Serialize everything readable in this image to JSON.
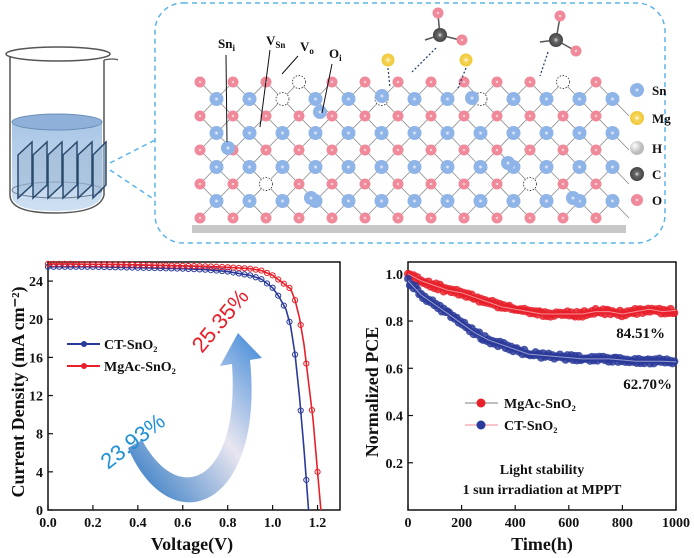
{
  "schematic": {
    "defect_labels": [
      "Sn_i",
      "V_Sn",
      "V_o",
      "O_i"
    ],
    "legend": [
      {
        "label": "Sn",
        "color": "#8fb4e8"
      },
      {
        "label": "Mg",
        "color": "#f5d55a"
      },
      {
        "label": "H",
        "color": "#f2f2f2"
      },
      {
        "label": "C",
        "color": "#606060"
      },
      {
        "label": "O",
        "color": "#f08a9a"
      }
    ]
  },
  "chart_data": [
    {
      "type": "line",
      "title": "",
      "xlabel": "Voltage(V)",
      "ylabel": "Current Density (mA cm⁻²)",
      "xlim": [
        0.0,
        1.3
      ],
      "ylim": [
        0,
        26
      ],
      "xticks": [
        "0.0",
        "0.2",
        "0.4",
        "0.6",
        "0.8",
        "1.0",
        "1.2"
      ],
      "yticks": [
        "0",
        "4",
        "8",
        "12",
        "16",
        "20",
        "24"
      ],
      "legend_position": "center-left",
      "series": [
        {
          "name": "CT-SnO₂",
          "color": "#2a3a9a",
          "pce": "23.93%",
          "pce_color": "#1e90d8",
          "x": [
            0,
            0.1,
            0.2,
            0.3,
            0.4,
            0.5,
            0.6,
            0.7,
            0.8,
            0.9,
            0.95,
            1.0,
            1.03,
            1.06,
            1.08,
            1.1,
            1.12,
            1.14,
            1.16
          ],
          "y": [
            25.5,
            25.5,
            25.5,
            25.45,
            25.4,
            25.35,
            25.3,
            25.2,
            25.0,
            24.6,
            24.2,
            23.3,
            22.3,
            21.0,
            19.3,
            16.3,
            11.8,
            6.3,
            0
          ]
        },
        {
          "name": "MgAc-SnO₂",
          "color": "#e8202a",
          "pce": "25.35%",
          "pce_color": "#e8202a",
          "x": [
            0,
            0.1,
            0.2,
            0.3,
            0.4,
            0.5,
            0.6,
            0.7,
            0.8,
            0.9,
            0.95,
            1.0,
            1.04,
            1.08,
            1.1,
            1.12,
            1.14,
            1.16,
            1.18,
            1.2,
            1.215
          ],
          "y": [
            25.8,
            25.8,
            25.75,
            25.75,
            25.7,
            25.65,
            25.6,
            25.55,
            25.45,
            25.3,
            25.1,
            24.6,
            23.9,
            23.2,
            22.0,
            20.1,
            17.3,
            13.4,
            9.5,
            4.0,
            0
          ]
        }
      ]
    },
    {
      "type": "scatter",
      "title": "",
      "xlabel": "Time(h)",
      "ylabel": "Normalized PCE",
      "xlim": [
        0,
        1000
      ],
      "ylim": [
        0,
        1.05
      ],
      "xticks": [
        "0",
        "200",
        "400",
        "600",
        "800",
        "1000"
      ],
      "yticks": [
        "0.2",
        "0.4",
        "0.6",
        "0.8",
        "1.0"
      ],
      "legend_position": "center",
      "annotation": [
        "Light stability",
        "1 sun irradiation at MPPT"
      ],
      "series": [
        {
          "name": "MgAc-SnO₂",
          "color": "#e8202a",
          "final_label": "84.51%",
          "x": [
            0,
            50,
            100,
            150,
            200,
            250,
            300,
            350,
            400,
            450,
            500,
            550,
            600,
            650,
            700,
            750,
            800,
            850,
            900,
            950,
            1000
          ],
          "y": [
            1.0,
            0.97,
            0.95,
            0.93,
            0.92,
            0.9,
            0.88,
            0.86,
            0.85,
            0.84,
            0.83,
            0.83,
            0.83,
            0.83,
            0.84,
            0.84,
            0.83,
            0.84,
            0.85,
            0.84,
            0.845
          ]
        },
        {
          "name": "CT-SnO₂",
          "color": "#2a3a9a",
          "final_label": "62.70%",
          "x": [
            0,
            50,
            100,
            150,
            200,
            250,
            300,
            350,
            400,
            450,
            500,
            550,
            600,
            650,
            700,
            750,
            800,
            850,
            900,
            950,
            1000
          ],
          "y": [
            0.97,
            0.91,
            0.87,
            0.83,
            0.79,
            0.75,
            0.72,
            0.7,
            0.68,
            0.66,
            0.655,
            0.65,
            0.645,
            0.64,
            0.64,
            0.64,
            0.635,
            0.63,
            0.63,
            0.63,
            0.627
          ]
        }
      ]
    }
  ]
}
